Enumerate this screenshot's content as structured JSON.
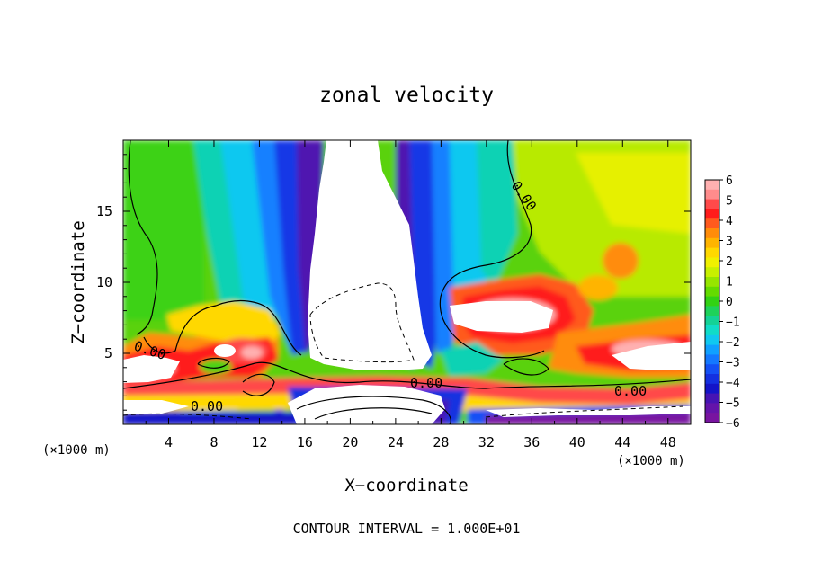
{
  "chart_data": {
    "type": "heatmap",
    "title": "zonal velocity",
    "xlabel": "X−coordinate",
    "ylabel": "Z−coordinate",
    "x_unit_left": "(×1000 m)",
    "x_unit_right": "(×1000 m)",
    "footer": "CONTOUR INTERVAL = 1.000E+01",
    "xlim": [
      0,
      50
    ],
    "ylim": [
      0,
      20
    ],
    "x_ticks": [
      4,
      8,
      12,
      16,
      20,
      24,
      28,
      32,
      36,
      40,
      44,
      48
    ],
    "y_ticks": [
      5,
      10,
      15
    ],
    "colorbar": {
      "ticks": [
        "6",
        "5",
        "4",
        "3",
        "2",
        "1",
        "0",
        "−1",
        "−2",
        "−3",
        "−4",
        "−5",
        "−6"
      ],
      "levels": [
        6,
        5.5,
        5,
        4.5,
        4,
        3.5,
        3,
        2.5,
        2,
        1.5,
        1,
        0.5,
        0,
        -0.5,
        -1,
        -1.5,
        -2,
        -2.5,
        -3,
        -3.5,
        -4,
        -4.5,
        -5,
        -5.5,
        -6
      ],
      "colors": [
        "#ffb0b0",
        "#ff8c8c",
        "#ff4a4a",
        "#ff1c1c",
        "#ff5a1e",
        "#ff8c0a",
        "#ffb400",
        "#ffd800",
        "#f0f000",
        "#c8f000",
        "#96e600",
        "#64dc00",
        "#32d214",
        "#1ed25a",
        "#14d296",
        "#10dcc8",
        "#10c8f0",
        "#10a0ff",
        "#1478ff",
        "#1450f5",
        "#1430e0",
        "#1414c8",
        "#4614b4",
        "#6414aa",
        "#7814a0"
      ]
    },
    "contour_labels": [
      "0.00",
      "0.00",
      "0.00",
      "0.00",
      "0.00"
    ],
    "grid": false,
    "legend": "right colorbar"
  }
}
